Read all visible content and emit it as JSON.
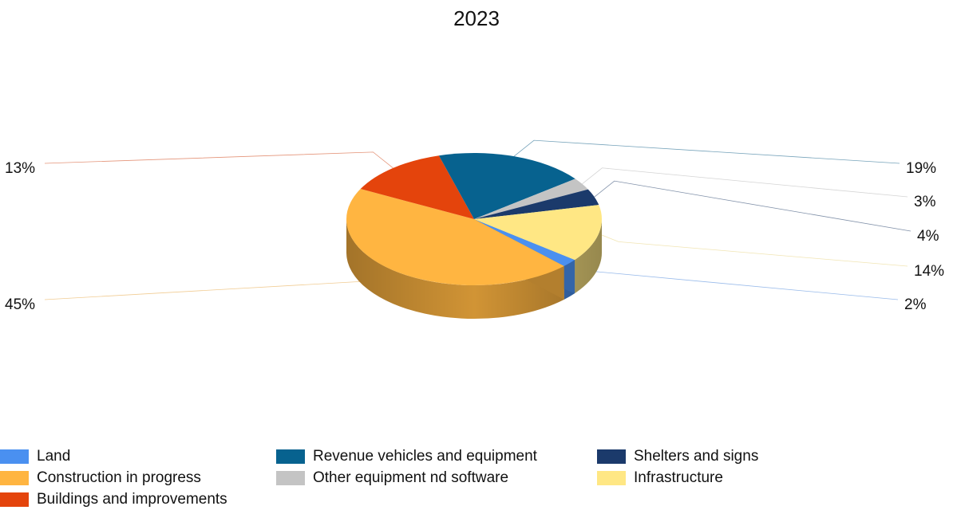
{
  "chart_data": {
    "type": "pie",
    "title": "2023",
    "unit": "%",
    "slices": [
      {
        "name": "Land",
        "value": 2,
        "label": "2%",
        "color": "#4a90f0"
      },
      {
        "name": "Construction in progress",
        "value": 45,
        "label": "45%",
        "color": "#ffb541"
      },
      {
        "name": "Buildings and improvements",
        "value": 13,
        "label": "13%",
        "color": "#e4440c"
      },
      {
        "name": "Revenue vehicles and equipment",
        "value": 19,
        "label": "19%",
        "color": "#07628f"
      },
      {
        "name": "Other equipment nd software",
        "value": 3,
        "label": "3%",
        "color": "#c4c4c4"
      },
      {
        "name": "Shelters and signs",
        "value": 4,
        "label": "4%",
        "color": "#1b3a6b"
      },
      {
        "name": "Infrastructure",
        "value": 14,
        "label": "14%",
        "color": "#ffe784"
      }
    ],
    "legend_position": "bottom"
  }
}
